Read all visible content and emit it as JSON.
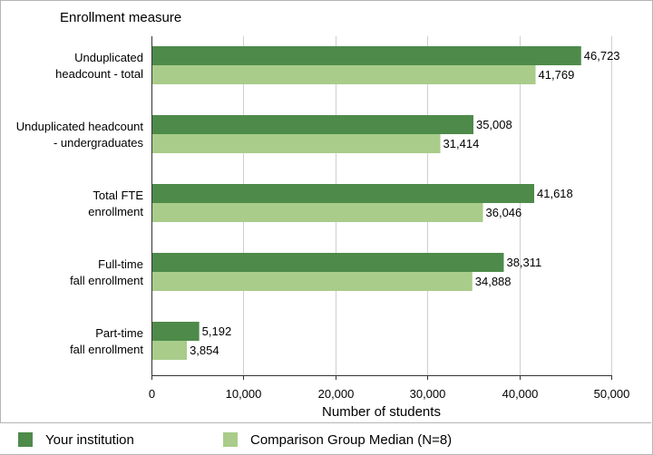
{
  "colors": {
    "your_institution": "#4e8a4a",
    "comparison": "#a9cc8a",
    "grid": "#cfcfcf",
    "axis": "#333333"
  },
  "legend": {
    "items": [
      {
        "label": "Your institution",
        "color": "#4e8a4a"
      },
      {
        "label": "Comparison Group Median (N=8)",
        "color": "#a9cc8a"
      }
    ]
  },
  "chart_data": {
    "type": "bar",
    "orientation": "horizontal",
    "ylabel": "Enrollment measure",
    "xlabel": "Number of students",
    "xlim": [
      0,
      50000
    ],
    "xticks": [
      "0",
      "10,000",
      "20,000",
      "30,000",
      "40,000",
      "50,000"
    ],
    "grid": true,
    "legend_position": "bottom",
    "categories": [
      [
        "Unduplicated",
        "headcount - total"
      ],
      [
        "Unduplicated headcount",
        "- undergraduates"
      ],
      [
        "Total FTE",
        "enrollment"
      ],
      [
        "Full-time",
        "fall enrollment"
      ],
      [
        "Part-time",
        "fall enrollment"
      ]
    ],
    "series": [
      {
        "name": "Your institution",
        "values": [
          46723,
          35008,
          41618,
          38311,
          5192
        ],
        "labels": [
          "46,723",
          "35,008",
          "41,618",
          "38,311",
          "5,192"
        ]
      },
      {
        "name": "Comparison Group Median (N=8)",
        "values": [
          41769,
          31414,
          36046,
          34888,
          3854
        ],
        "labels": [
          "41,769",
          "31,414",
          "36,046",
          "34,888",
          "3,854"
        ]
      }
    ]
  }
}
